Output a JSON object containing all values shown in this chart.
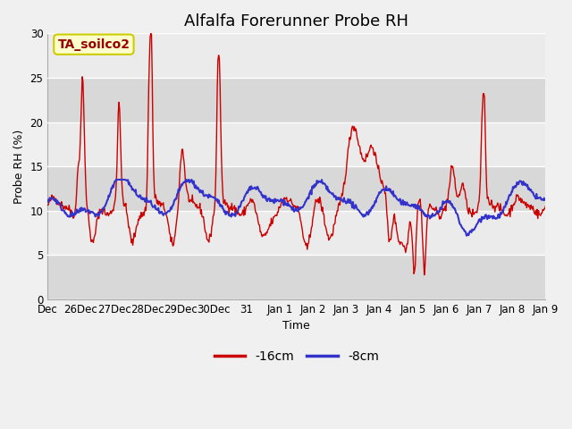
{
  "title": "Alfalfa Forerunner Probe RH",
  "ylabel": "Probe RH (%)",
  "xlabel": "Time",
  "ylim": [
    0,
    30
  ],
  "yticks": [
    0,
    5,
    10,
    15,
    20,
    25,
    30
  ],
  "fig_bg_color": "#f0f0f0",
  "plot_bg_color": "#e8e8e8",
  "band_color_light": "#f0f0f0",
  "band_color_dark": "#e0e0e0",
  "red_color": "#cc0000",
  "blue_color": "#3333cc",
  "annotation_text": "TA_soilco2",
  "annotation_bg": "#ffffcc",
  "annotation_border": "#cccc00",
  "legend_labels": [
    "-16cm",
    "-8cm"
  ],
  "x_tick_labels": [
    "Dec",
    "26Dec",
    "27Dec",
    "28Dec",
    "29Dec",
    "30Dec",
    "31",
    "Jan 1",
    "Jan 2",
    "Jan 3",
    "Jan 4",
    "Jan 5",
    "Jan 6",
    "Jan 7",
    "Jan 8",
    "Jan 9"
  ],
  "title_fontsize": 13,
  "label_fontsize": 9,
  "tick_fontsize": 8.5
}
